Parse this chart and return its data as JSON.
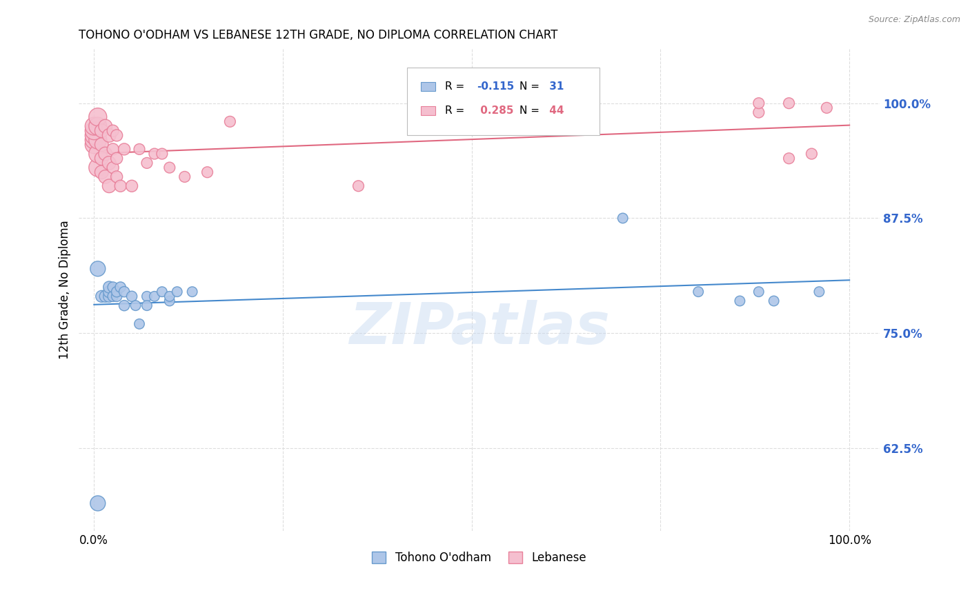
{
  "title": "TOHONO O'ODHAM VS LEBANESE 12TH GRADE, NO DIPLOMA CORRELATION CHART",
  "source": "Source: ZipAtlas.com",
  "ylabel": "12th Grade, No Diploma",
  "background_color": "#ffffff",
  "grid_color": "#dddddd",
  "watermark_text": "ZIPatlas",
  "tohono_color": "#aec6e8",
  "tohono_edge_color": "#6699cc",
  "lebanese_color": "#f5bfcf",
  "lebanese_edge_color": "#e8809a",
  "tohono_line_color": "#4488cc",
  "lebanese_line_color": "#e06880",
  "r1_val": "-0.115",
  "n1_val": "31",
  "r2_val": "0.285",
  "n2_val": "44",
  "blue_num_color": "#3366cc",
  "pink_num_color": "#e06880",
  "ytick_values": [
    0.625,
    0.75,
    0.875,
    1.0
  ],
  "ytick_labels": [
    "62.5%",
    "75.0%",
    "87.5%",
    "100.0%"
  ],
  "xlim": [
    -0.02,
    1.04
  ],
  "ylim": [
    0.535,
    1.06
  ],
  "tohono_x": [
    0.005,
    0.01,
    0.015,
    0.02,
    0.02,
    0.02,
    0.025,
    0.025,
    0.03,
    0.03,
    0.035,
    0.04,
    0.04,
    0.05,
    0.055,
    0.06,
    0.07,
    0.07,
    0.08,
    0.09,
    0.1,
    0.1,
    0.11,
    0.13,
    0.7,
    0.8,
    0.855,
    0.88,
    0.9,
    0.96,
    0.005
  ],
  "tohono_y": [
    0.565,
    0.79,
    0.79,
    0.79,
    0.795,
    0.8,
    0.79,
    0.8,
    0.79,
    0.795,
    0.8,
    0.78,
    0.795,
    0.79,
    0.78,
    0.76,
    0.79,
    0.78,
    0.79,
    0.795,
    0.785,
    0.79,
    0.795,
    0.795,
    0.875,
    0.795,
    0.785,
    0.795,
    0.785,
    0.795,
    0.82
  ],
  "lebanese_x": [
    0.0,
    0.0,
    0.0,
    0.005,
    0.005,
    0.005,
    0.01,
    0.01,
    0.01,
    0.015,
    0.015,
    0.02,
    0.02,
    0.025,
    0.025,
    0.03,
    0.03,
    0.035,
    0.04,
    0.05,
    0.06,
    0.07,
    0.08,
    0.09,
    0.1,
    0.12,
    0.15,
    0.18,
    0.35,
    0.88,
    0.88,
    0.92,
    0.92,
    0.95,
    0.97,
    0.0,
    0.0,
    0.005,
    0.005,
    0.01,
    0.015,
    0.02,
    0.025,
    0.03
  ],
  "lebanese_y": [
    0.955,
    0.96,
    0.965,
    0.93,
    0.945,
    0.96,
    0.925,
    0.94,
    0.955,
    0.92,
    0.945,
    0.91,
    0.935,
    0.93,
    0.95,
    0.92,
    0.94,
    0.91,
    0.95,
    0.91,
    0.95,
    0.935,
    0.945,
    0.945,
    0.93,
    0.92,
    0.925,
    0.98,
    0.91,
    0.99,
    1.0,
    0.94,
    1.0,
    0.945,
    0.995,
    0.97,
    0.975,
    0.975,
    0.985,
    0.97,
    0.975,
    0.965,
    0.97,
    0.965
  ]
}
